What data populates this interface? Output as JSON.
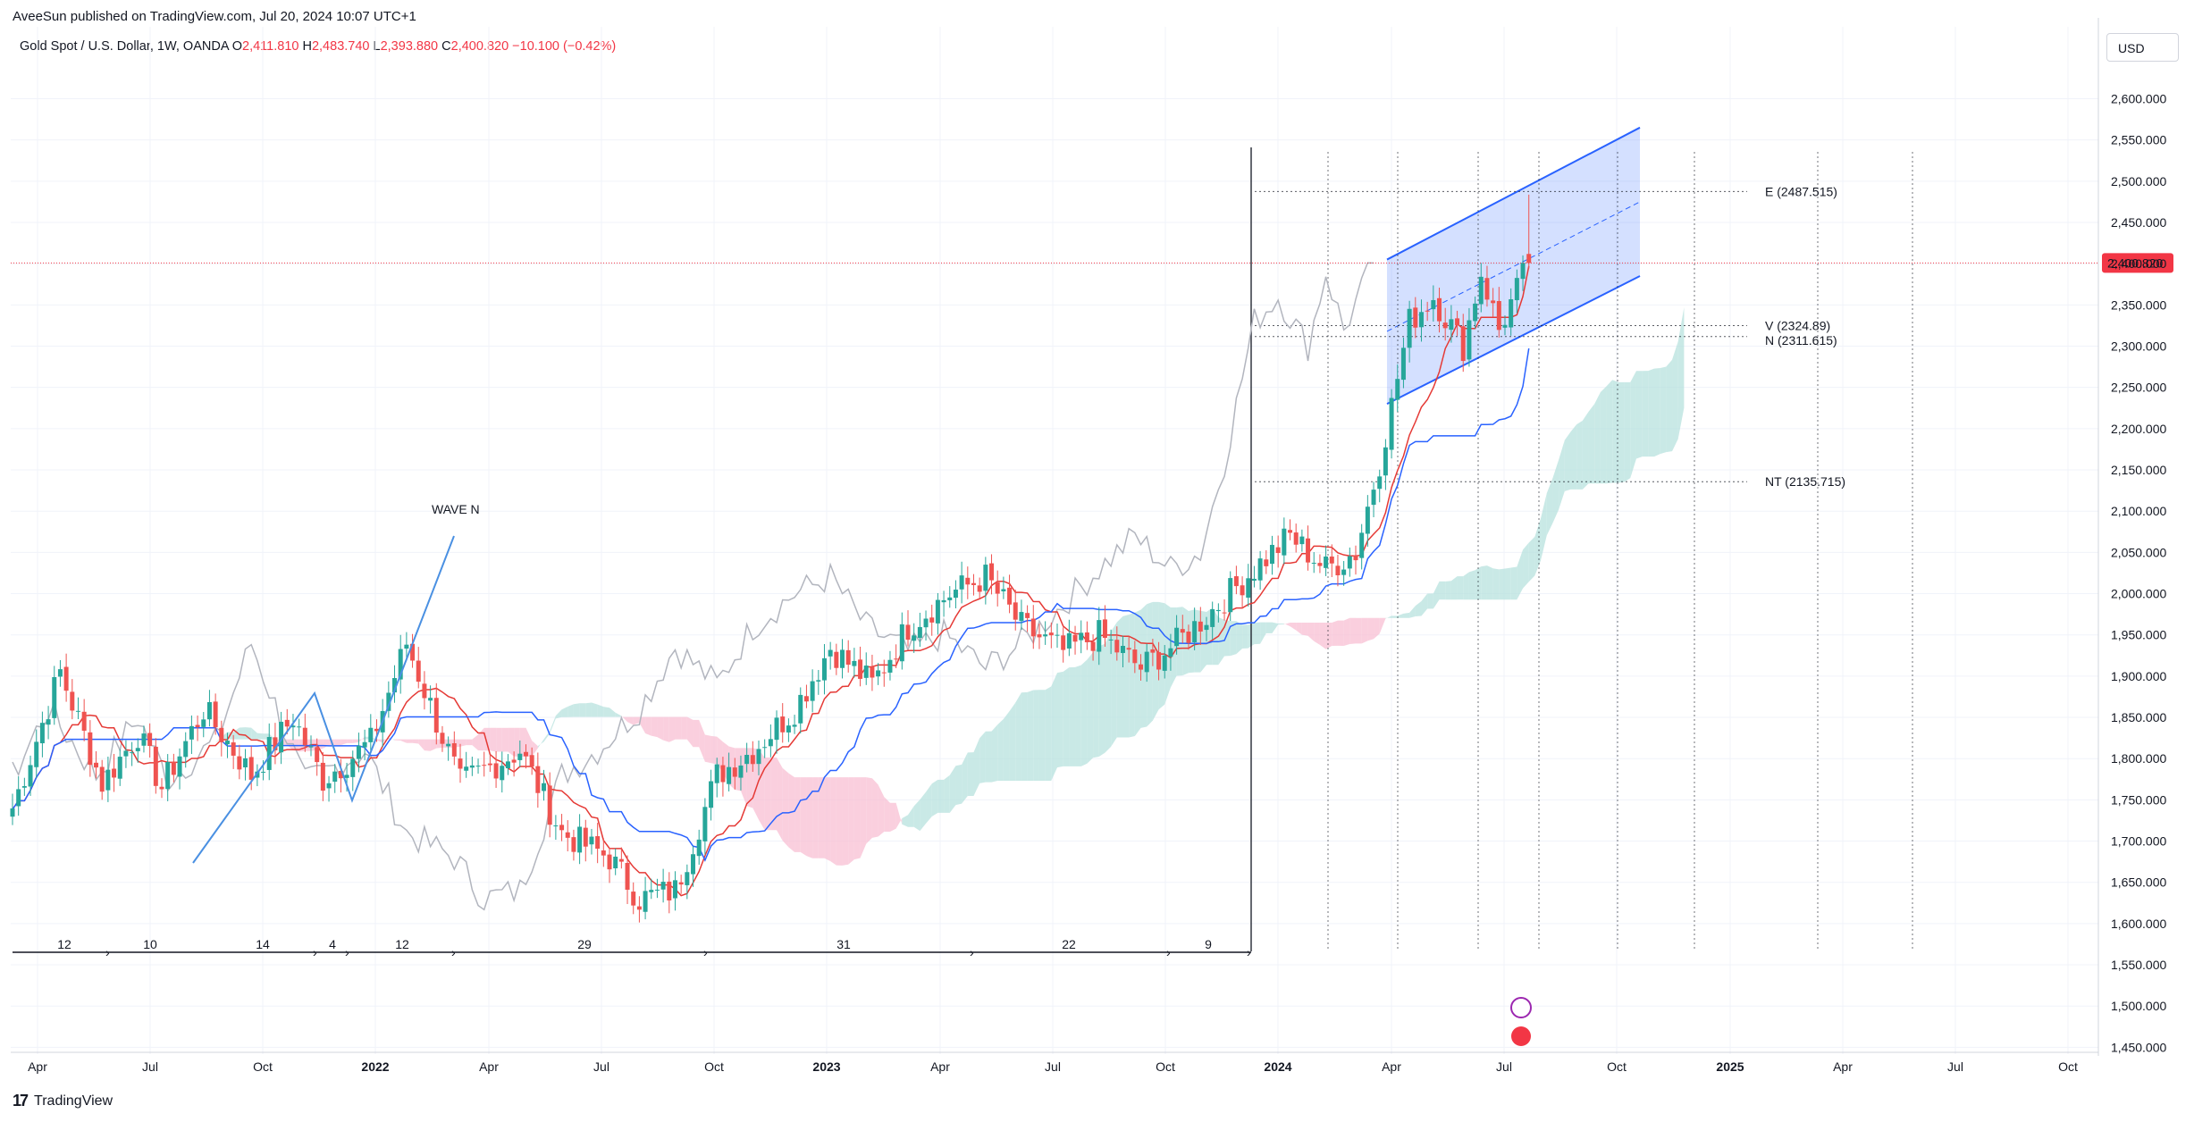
{
  "publisher_line": "AveeSun published on TradingView.com, Jul 20, 2024 10:07 UTC+1",
  "legend": {
    "symbol": "Gold Spot / U.S. Dollar, 1W, OANDA",
    "o_label": "O",
    "o": "2,411.810",
    "h_label": "H",
    "h": "2,483.740",
    "l_label": "L",
    "l": "2,393.880",
    "c_label": "C",
    "c": "2,400.820",
    "change": "−10.100 (−0.42%)"
  },
  "currency": "USD",
  "brand": "TradingView",
  "colors": {
    "up": "#26a69a",
    "down": "#ef5350",
    "tenkan": "#e53935",
    "kijun": "#2962ff",
    "lagging": "#b2b5be",
    "cloud_bull": "#b2dfdb",
    "cloud_bear": "#f8bbd0",
    "channel": "#2962ff",
    "price_badge": "#f23645"
  },
  "chart_data": {
    "type": "candlestick",
    "price_label": "2,400.820",
    "ylim": [
      1430,
      2640
    ],
    "y_ticks": [
      "2,600.000",
      "2,550.000",
      "2,500.000",
      "2,450.000",
      "2,400.000",
      "2,350.000",
      "2,300.000",
      "2,250.000",
      "2,200.000",
      "2,150.000",
      "2,100.000",
      "2,050.000",
      "2,000.000",
      "1,950.000",
      "1,900.000",
      "1,850.000",
      "1,800.000",
      "1,750.000",
      "1,700.000",
      "1,650.000",
      "1,600.000",
      "1,550.000",
      "1,500.000",
      "1,450.000"
    ],
    "x_ticks": [
      {
        "label": "Apr",
        "bold": false
      },
      {
        "label": "Jul",
        "bold": false
      },
      {
        "label": "Oct",
        "bold": false
      },
      {
        "label": "2022",
        "bold": true
      },
      {
        "label": "Apr",
        "bold": false
      },
      {
        "label": "Jul",
        "bold": false
      },
      {
        "label": "Oct",
        "bold": false
      },
      {
        "label": "2023",
        "bold": true
      },
      {
        "label": "Apr",
        "bold": false
      },
      {
        "label": "Jul",
        "bold": false
      },
      {
        "label": "Oct",
        "bold": false
      },
      {
        "label": "2024",
        "bold": true
      },
      {
        "label": "Apr",
        "bold": false
      },
      {
        "label": "Jul",
        "bold": false
      },
      {
        "label": "Oct",
        "bold": false
      },
      {
        "label": "2025",
        "bold": true
      },
      {
        "label": "Apr",
        "bold": false
      },
      {
        "label": "Jul",
        "bold": false
      },
      {
        "label": "Oct",
        "bold": false
      }
    ],
    "annotations": {
      "wave_label": "WAVE N",
      "targets": [
        {
          "label": "E (2487.515)",
          "price": 2487.515
        },
        {
          "label": "V (2324.89)",
          "price": 2324.89
        },
        {
          "label": "N (2311.615)",
          "price": 2311.615
        },
        {
          "label": "NT (2135.715)",
          "price": 2135.715
        }
      ],
      "bar_counts": [
        "12",
        "10",
        "14",
        "4",
        "12",
        "29",
        "31",
        "22",
        "9"
      ]
    },
    "series": [
      {
        "name": "Gold Spot / U.S. Dollar",
        "kind": "candles",
        "anchors": [
          [
            0,
            1740
          ],
          [
            8,
            1905
          ],
          [
            15,
            1770
          ],
          [
            21,
            1830
          ],
          [
            25,
            1765
          ],
          [
            32,
            1860
          ],
          [
            40,
            1780
          ],
          [
            47,
            1850
          ],
          [
            52,
            1775
          ],
          [
            60,
            1820
          ],
          [
            66,
            1940
          ],
          [
            75,
            1770
          ],
          [
            85,
            1810
          ],
          [
            92,
            1710
          ],
          [
            100,
            1680
          ],
          [
            105,
            1630
          ],
          [
            111,
            1640
          ],
          [
            118,
            1780
          ],
          [
            124,
            1810
          ],
          [
            131,
            1860
          ],
          [
            137,
            1935
          ],
          [
            144,
            1890
          ],
          [
            150,
            1960
          ],
          [
            157,
            2000
          ],
          [
            163,
            2020
          ],
          [
            169,
            1960
          ],
          [
            176,
            1930
          ],
          [
            182,
            1950
          ],
          [
            189,
            1910
          ],
          [
            195,
            1940
          ],
          [
            201,
            1980
          ],
          [
            208,
            2030
          ],
          [
            214,
            2070
          ],
          [
            220,
            2030
          ],
          [
            225,
            2050
          ],
          [
            229,
            2160
          ],
          [
            234,
            2330
          ],
          [
            238,
            2360
          ],
          [
            243,
            2300
          ],
          [
            246,
            2390
          ],
          [
            249,
            2320
          ],
          [
            254,
            2400
          ]
        ]
      },
      {
        "name": "Tenkan",
        "kind": "line"
      },
      {
        "name": "Kijun",
        "kind": "line"
      },
      {
        "name": "Chikou",
        "kind": "line"
      },
      {
        "name": "Cloud",
        "kind": "area"
      }
    ]
  }
}
